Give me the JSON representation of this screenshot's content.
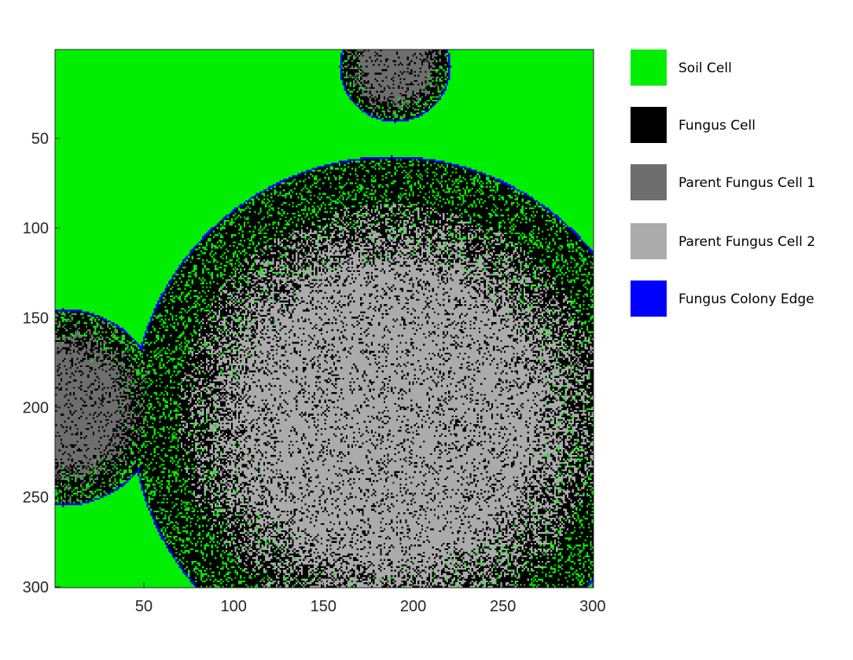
{
  "chart_data": {
    "type": "heatmap",
    "grid_size": [
      300,
      300
    ],
    "xlim": [
      1,
      300
    ],
    "ylim": [
      1,
      300
    ],
    "y_axis_direction": "reversed",
    "x_ticks": [
      50,
      100,
      150,
      200,
      250,
      300
    ],
    "y_ticks": [
      50,
      100,
      150,
      200,
      250,
      300
    ],
    "x_tick_labels": [
      "50",
      "100",
      "150",
      "200",
      "250",
      "300"
    ],
    "y_tick_labels": [
      "50",
      "100",
      "150",
      "200",
      "250",
      "300"
    ],
    "title": "",
    "xlabel": "",
    "ylabel": "",
    "legend_placement": "right",
    "categories": [
      {
        "label": "Soil Cell",
        "color": "#00ee00"
      },
      {
        "label": "Fungus Cell",
        "color": "#000000"
      },
      {
        "label": "Parent Fungus Cell 1",
        "color": "#6e6e6e"
      },
      {
        "label": "Parent Fungus Cell 2",
        "color": "#ababab"
      },
      {
        "label": "Fungus Colony Edge",
        "color": "#0000ff"
      }
    ],
    "colonies": [
      {
        "center_x": 190,
        "center_y": 10,
        "radius": 31
      },
      {
        "center_x": 188,
        "center_y": 205,
        "radius": 145
      },
      {
        "center_x": 5,
        "center_y": 200,
        "radius": 55
      }
    ]
  }
}
